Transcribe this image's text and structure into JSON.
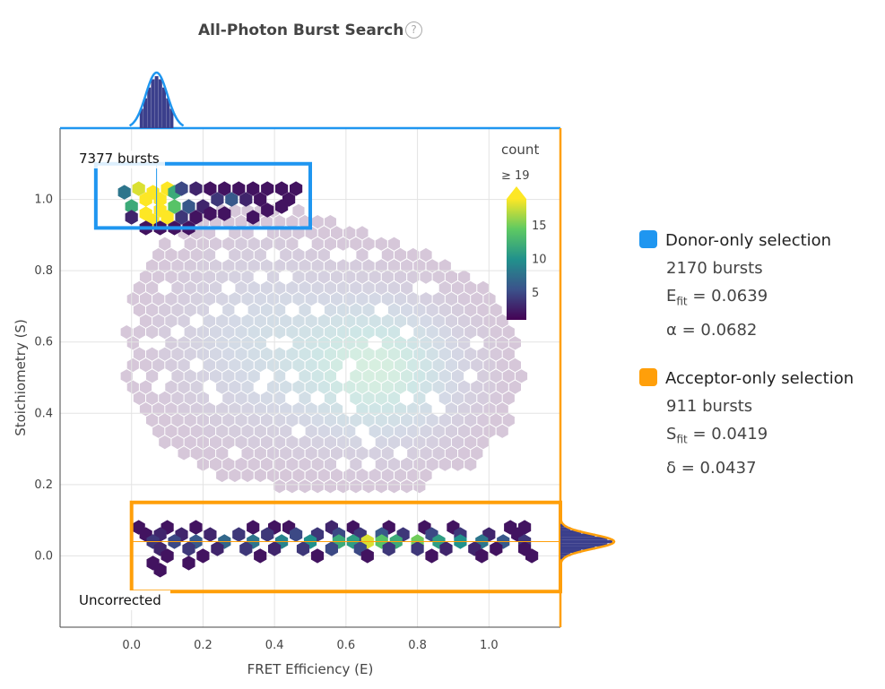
{
  "title": "All-Photon Burst Search",
  "help_icon": "help-circle-icon",
  "annotations": {
    "donor_count": "7377 bursts",
    "correction_state": "Uncorrected"
  },
  "colors": {
    "donor": "#1f96f0",
    "acceptor": "#ff9f0a",
    "marginal_hist": "#3b3f8c"
  },
  "selections": [
    {
      "name": "Donor-only selection",
      "color": "#1f96f0",
      "count": "2170 bursts",
      "param_label": "E",
      "param_sub": "fit",
      "param_value": "= 0.0639",
      "extra": "α = 0.0682"
    },
    {
      "name": "Acceptor-only selection",
      "color": "#ff9f0a",
      "count": "911 bursts",
      "param_label": "S",
      "param_sub": "fit",
      "param_value": "= 0.0419",
      "extra": "δ = 0.0437"
    }
  ],
  "chart_data": {
    "type": "heatmap",
    "subtype": "hexbin",
    "title": "All-Photon Burst Search",
    "xlabel": "FRET Efficiency (E)",
    "ylabel": "Stoichiometry (S)",
    "xlim": [
      -0.2,
      1.2
    ],
    "ylim": [
      -0.2,
      1.2
    ],
    "xticks": [
      "0.0",
      "0.2",
      "0.4",
      "0.6",
      "0.8",
      "1.0"
    ],
    "yticks": [
      "0.0",
      "0.2",
      "0.4",
      "0.6",
      "0.8",
      "1.0"
    ],
    "grid": true,
    "colorscale": "viridis",
    "colorbar": {
      "title": "count",
      "max_label": "≥ 19",
      "ticks": [
        5,
        10,
        15
      ],
      "range": [
        1,
        19
      ],
      "placement": "top-right inside plot"
    },
    "regions": [
      {
        "name": "donor-only",
        "x": [
          -0.1,
          0.5
        ],
        "y": [
          0.92,
          1.1
        ],
        "color": "#1f96f0",
        "highlighted": true
      },
      {
        "name": "acceptor-only",
        "x": [
          0.0,
          1.2
        ],
        "y": [
          -0.1,
          0.15
        ],
        "color": "#ff9f0a",
        "highlighted": true
      }
    ],
    "donor_hexes": [
      [
        -0.02,
        1.02,
        8
      ],
      [
        0.02,
        1.03,
        18
      ],
      [
        0.04,
        1.0,
        19
      ],
      [
        0.06,
        1.02,
        19
      ],
      [
        0.08,
        1.0,
        19
      ],
      [
        0.1,
        1.03,
        19
      ],
      [
        0.12,
        1.02,
        12
      ],
      [
        0.14,
        1.03,
        5
      ],
      [
        0.18,
        1.03,
        3
      ],
      [
        0.22,
        1.03,
        2
      ],
      [
        0.26,
        1.03,
        2
      ],
      [
        0.3,
        1.03,
        2
      ],
      [
        0.34,
        1.03,
        2
      ],
      [
        0.38,
        1.03,
        2
      ],
      [
        0.42,
        1.03,
        2
      ],
      [
        0.46,
        1.03,
        2
      ],
      [
        0.0,
        0.98,
        12
      ],
      [
        0.04,
        0.96,
        19
      ],
      [
        0.08,
        0.97,
        19
      ],
      [
        0.12,
        0.98,
        14
      ],
      [
        0.16,
        0.98,
        6
      ],
      [
        0.2,
        0.98,
        3
      ],
      [
        0.24,
        1.0,
        4
      ],
      [
        0.28,
        1.0,
        6
      ],
      [
        0.32,
        1.0,
        3
      ],
      [
        0.36,
        1.0,
        2
      ],
      [
        0.44,
        1.0,
        2
      ],
      [
        0.0,
        0.95,
        3
      ],
      [
        0.06,
        0.94,
        19
      ],
      [
        0.1,
        0.95,
        19
      ],
      [
        0.14,
        0.95,
        4
      ],
      [
        0.22,
        0.96,
        2
      ],
      [
        0.26,
        0.96,
        2
      ],
      [
        0.38,
        0.97,
        2
      ],
      [
        0.42,
        0.98,
        2
      ],
      [
        0.04,
        0.92,
        2
      ],
      [
        0.08,
        0.92,
        2
      ],
      [
        0.12,
        0.92,
        2
      ],
      [
        0.16,
        0.92,
        2
      ],
      [
        0.34,
        0.95,
        2
      ],
      [
        0.18,
        0.95,
        2
      ]
    ],
    "acceptor_hexes": [
      [
        0.02,
        0.08,
        2
      ],
      [
        0.1,
        0.08,
        2
      ],
      [
        0.18,
        0.08,
        2
      ],
      [
        0.34,
        0.08,
        2
      ],
      [
        0.4,
        0.08,
        2
      ],
      [
        0.44,
        0.08,
        2
      ],
      [
        0.56,
        0.08,
        3
      ],
      [
        0.62,
        0.08,
        2
      ],
      [
        0.72,
        0.08,
        2
      ],
      [
        0.82,
        0.08,
        2
      ],
      [
        0.9,
        0.08,
        2
      ],
      [
        1.06,
        0.08,
        2
      ],
      [
        1.1,
        0.08,
        2
      ],
      [
        0.04,
        0.06,
        2
      ],
      [
        0.08,
        0.06,
        3
      ],
      [
        0.14,
        0.06,
        3
      ],
      [
        0.22,
        0.06,
        3
      ],
      [
        0.3,
        0.06,
        4
      ],
      [
        0.38,
        0.06,
        4
      ],
      [
        0.46,
        0.06,
        5
      ],
      [
        0.52,
        0.06,
        4
      ],
      [
        0.58,
        0.06,
        5
      ],
      [
        0.64,
        0.06,
        4
      ],
      [
        0.7,
        0.06,
        6
      ],
      [
        0.76,
        0.06,
        4
      ],
      [
        0.84,
        0.06,
        5
      ],
      [
        0.92,
        0.06,
        4
      ],
      [
        1.0,
        0.06,
        3
      ],
      [
        1.08,
        0.06,
        2
      ],
      [
        0.06,
        0.04,
        4
      ],
      [
        0.12,
        0.04,
        5
      ],
      [
        0.18,
        0.04,
        6
      ],
      [
        0.26,
        0.04,
        7
      ],
      [
        0.34,
        0.04,
        8
      ],
      [
        0.42,
        0.04,
        9
      ],
      [
        0.5,
        0.04,
        10
      ],
      [
        0.58,
        0.04,
        12
      ],
      [
        0.62,
        0.04,
        11
      ],
      [
        0.66,
        0.04,
        18
      ],
      [
        0.7,
        0.04,
        14
      ],
      [
        0.74,
        0.04,
        12
      ],
      [
        0.8,
        0.04,
        15
      ],
      [
        0.86,
        0.04,
        11
      ],
      [
        0.92,
        0.04,
        10
      ],
      [
        0.98,
        0.04,
        8
      ],
      [
        1.04,
        0.04,
        6
      ],
      [
        1.1,
        0.04,
        4
      ],
      [
        0.08,
        0.02,
        3
      ],
      [
        0.16,
        0.02,
        4
      ],
      [
        0.24,
        0.02,
        3
      ],
      [
        0.32,
        0.02,
        4
      ],
      [
        0.4,
        0.02,
        3
      ],
      [
        0.48,
        0.02,
        4
      ],
      [
        0.56,
        0.02,
        5
      ],
      [
        0.64,
        0.02,
        5
      ],
      [
        0.72,
        0.02,
        4
      ],
      [
        0.8,
        0.02,
        4
      ],
      [
        0.88,
        0.02,
        3
      ],
      [
        0.96,
        0.02,
        3
      ],
      [
        1.02,
        0.02,
        2
      ],
      [
        1.1,
        0.02,
        2
      ],
      [
        0.1,
        0.0,
        2
      ],
      [
        0.2,
        0.0,
        2
      ],
      [
        0.36,
        0.0,
        2
      ],
      [
        0.52,
        0.0,
        2
      ],
      [
        0.66,
        0.0,
        2
      ],
      [
        0.84,
        0.0,
        2
      ],
      [
        0.98,
        0.0,
        2
      ],
      [
        1.12,
        0.0,
        2
      ],
      [
        0.06,
        -0.02,
        2
      ],
      [
        0.16,
        -0.02,
        2
      ],
      [
        0.08,
        -0.04,
        2
      ]
    ],
    "background_density": [
      {
        "x": 0.7,
        "y": 0.52,
        "sx": 0.16,
        "sy": 0.14,
        "peak": 12
      },
      {
        "x": 0.35,
        "y": 0.6,
        "sx": 0.18,
        "sy": 0.18,
        "peak": 6
      }
    ],
    "marginal_x": {
      "center": 0.07,
      "width": 0.03,
      "color": "#1f96f0"
    },
    "marginal_y": {
      "center": 0.04,
      "width": 0.02,
      "color": "#ff9f0a"
    }
  }
}
